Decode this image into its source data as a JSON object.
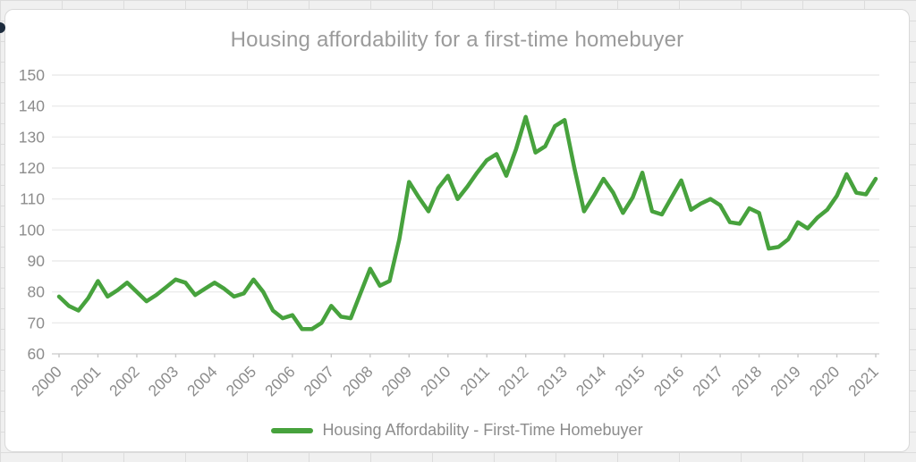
{
  "title": "Housing affordability for a first-time homebuyer",
  "legend": {
    "label": "Housing Affordability - First-Time Homebuyer",
    "swatch_color": "#47a23d"
  },
  "colors": {
    "line": "#47a23d",
    "gridline": "#ebebeb",
    "axis": "#d4d4d4",
    "tick": "#c8c8c8",
    "labels": "#8c8c8c",
    "title": "#9b9b9b",
    "card_bg": "#ffffff",
    "card_border": "#d9d9d9",
    "page_bg": "#f0f0f0"
  },
  "chart_data": {
    "type": "line",
    "title": "Housing affordability for a first-time homebuyer",
    "frequency": "quarterly",
    "x_start": "2000 Q1",
    "x_end": "2021 Q1",
    "x_tick_labels": [
      "2000",
      "2001",
      "2002",
      "2003",
      "2004",
      "2005",
      "2006",
      "2007",
      "2008",
      "2009",
      "2010",
      "2011",
      "2012",
      "2013",
      "2014",
      "2015",
      "2016",
      "2017",
      "2018",
      "2019",
      "2020",
      "2021"
    ],
    "y_ticks": [
      60,
      70,
      80,
      90,
      100,
      110,
      120,
      130,
      140,
      150
    ],
    "ylim": [
      60,
      150
    ],
    "grid": "horizontal",
    "legend_position": "bottom",
    "series": [
      {
        "name": "Housing Affordability - First-Time Homebuyer",
        "color": "#47a23d",
        "values": [
          78.5,
          75.5,
          74,
          78,
          83.5,
          78.5,
          80.5,
          83,
          80,
          77,
          79,
          81.5,
          84,
          83,
          79,
          81,
          83,
          81,
          78.5,
          79.5,
          84,
          80,
          74,
          71.5,
          72.5,
          68,
          68,
          70,
          75.5,
          72,
          71.5,
          79.5,
          87.5,
          82,
          83.5,
          97,
          115.5,
          110.5,
          106,
          113.5,
          117.5,
          110,
          114,
          118.5,
          122.5,
          124.5,
          117.5,
          126,
          136.5,
          125,
          127,
          133.5,
          135.5,
          120,
          106,
          111,
          116.5,
          112,
          105.5,
          110.5,
          118.5,
          106,
          105,
          110.5,
          116,
          106.5,
          108.5,
          110,
          108,
          102.5,
          102,
          107,
          105.5,
          94,
          94.5,
          97,
          102.5,
          100.5,
          104,
          106.5,
          111,
          118,
          112,
          111.5,
          116.5
        ]
      }
    ]
  }
}
